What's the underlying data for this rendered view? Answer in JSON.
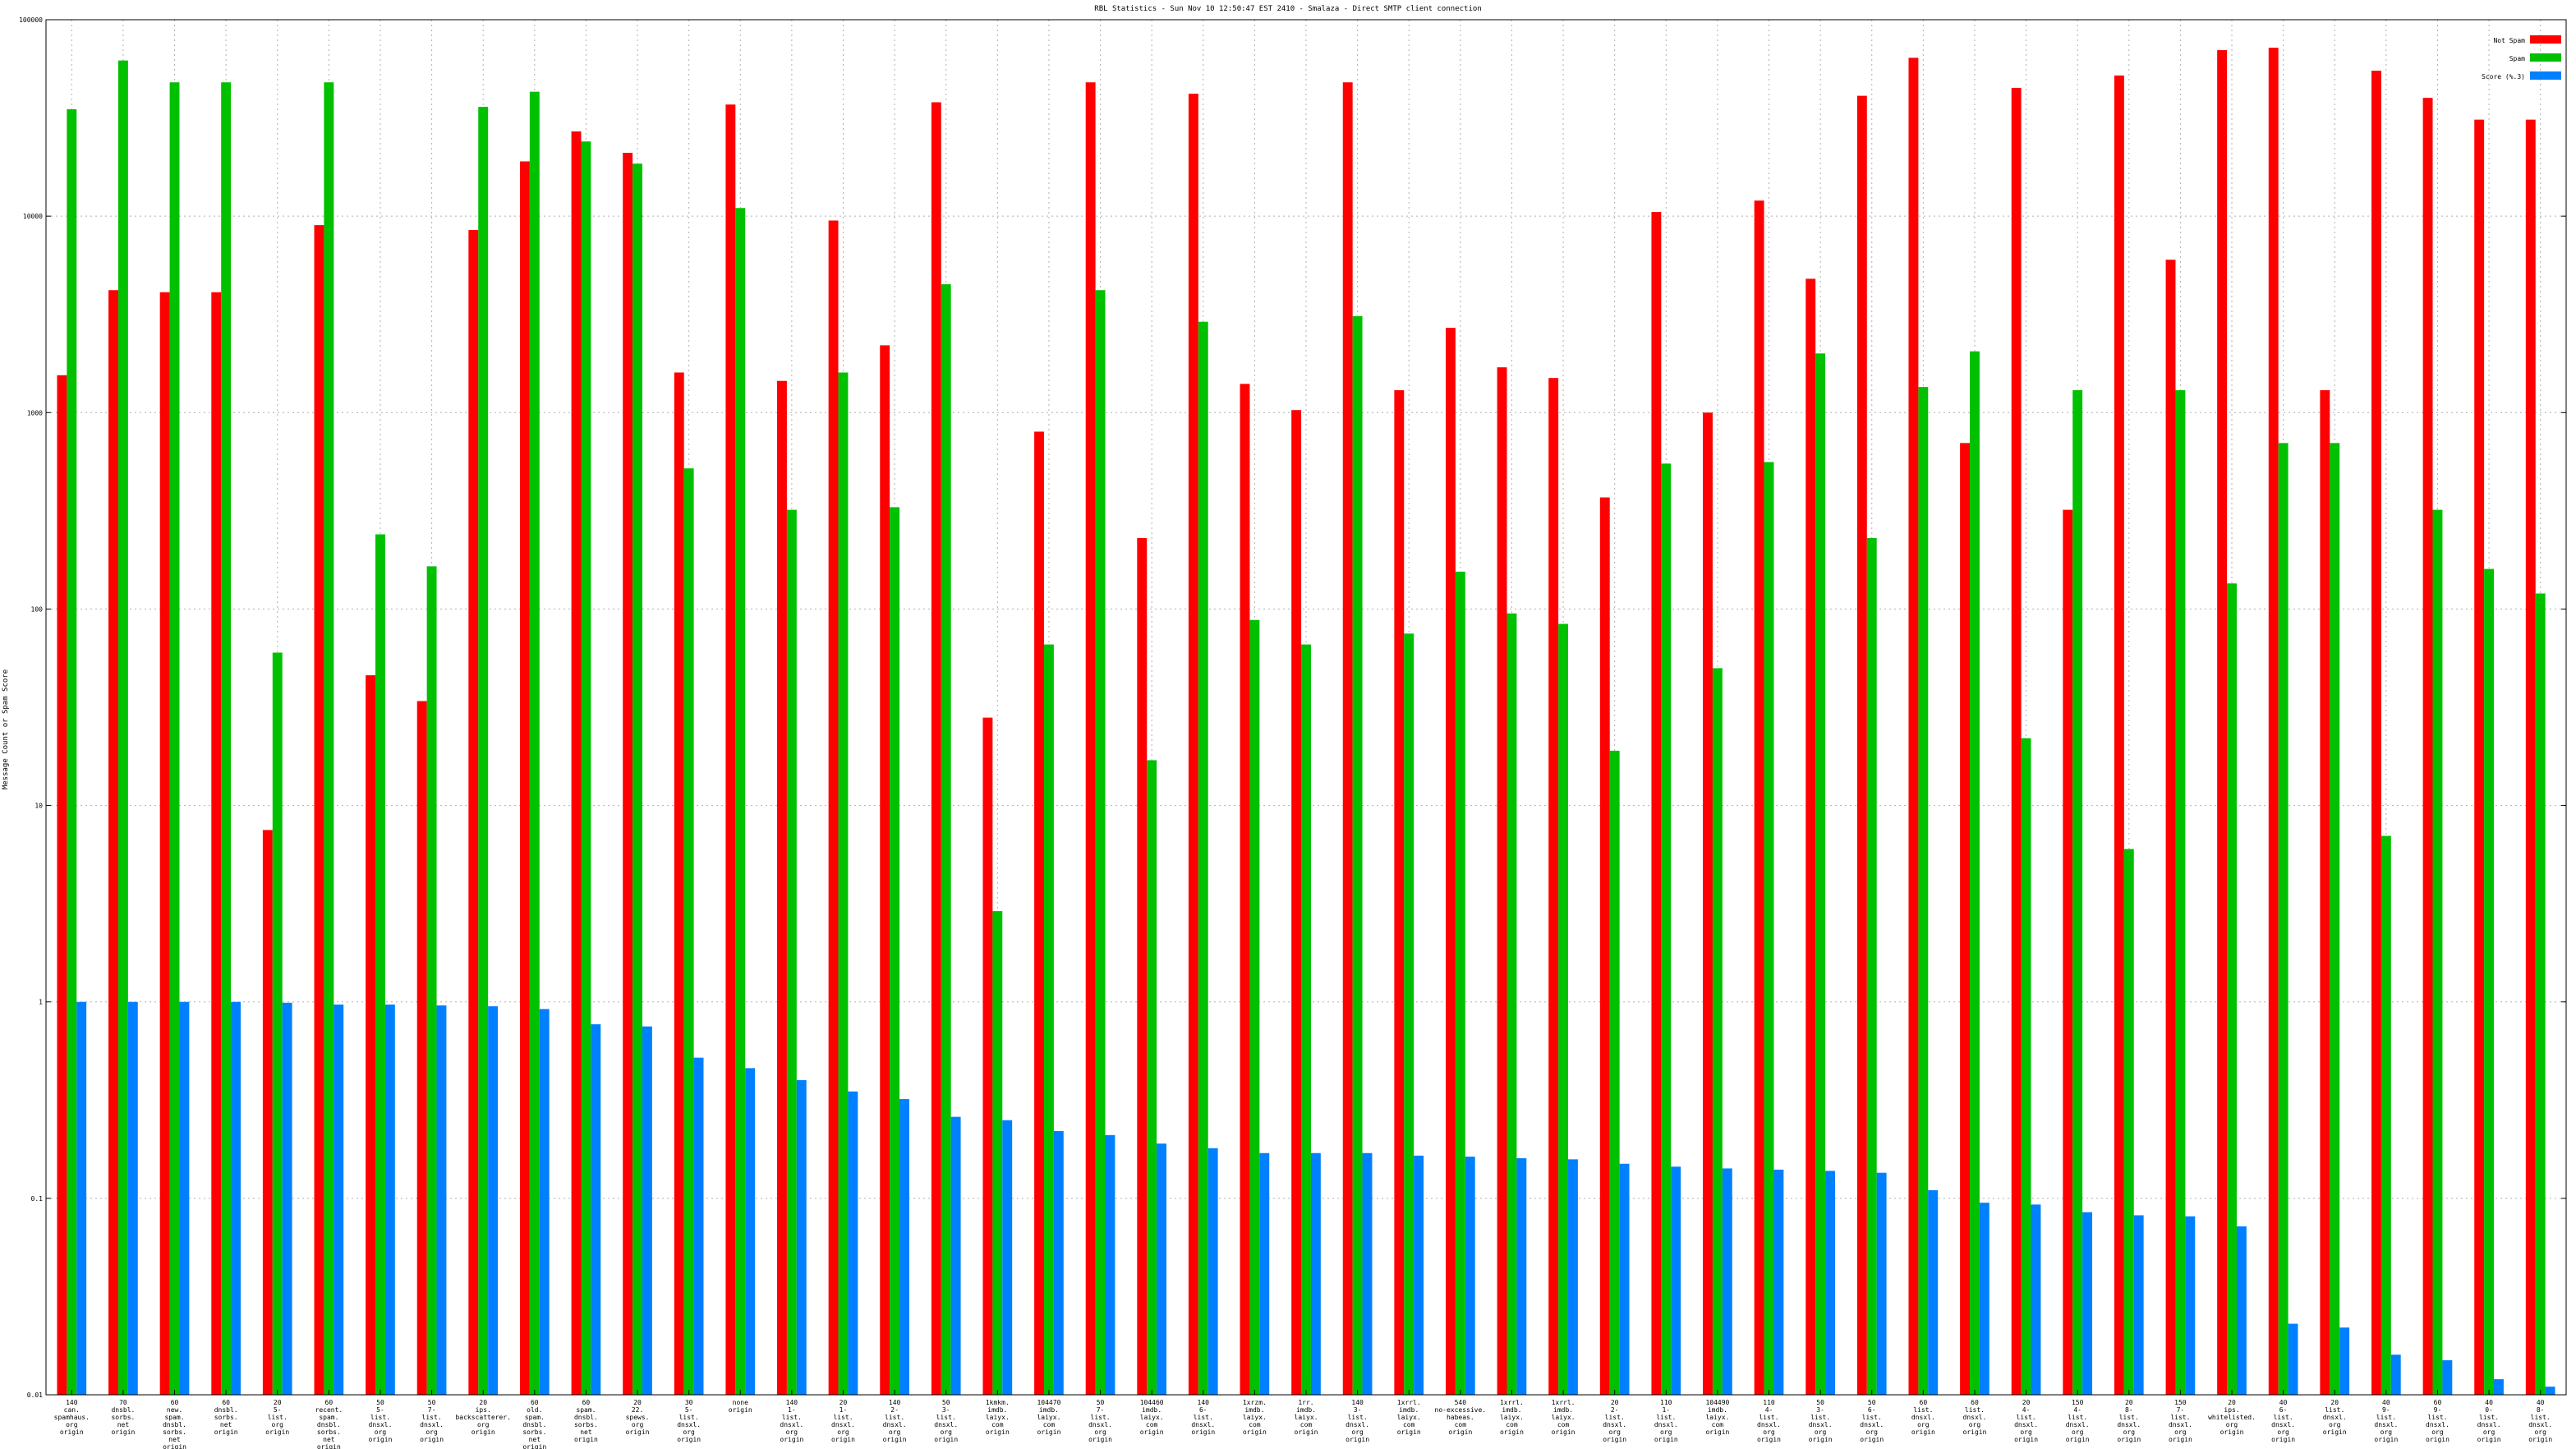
{
  "chart_data": {
    "type": "bar",
    "title": "RBL Statistics - Sun Nov 10 12:50:47 EST 2410 - Smalaza - Direct SMTP client connection",
    "xlabel": "",
    "ylabel": "Message Count or Spam Score",
    "yscale": "log",
    "ylim": [
      0.01,
      100000
    ],
    "yticks": [
      "0.01",
      "0.1",
      "1",
      "10",
      "100",
      "1000",
      "10000",
      "100000"
    ],
    "grid": true,
    "legend_position": "top-right",
    "categories": [
      "140\ncan.\nspamhaus.\norg\norigin",
      "70\ndnsbl.\nsorbs.\nnet\norigin",
      "60\nnew.\nspam.\ndnsbl.\nsorbs.\nnet\norigin",
      "60\ndnsbl.\nsorbs.\nnet\norigin",
      "20\n5-\nlist.\norg\norigin",
      "60\nrecent.\nspam.\ndnsbl.\nsorbs.\nnet\norigin",
      "50\n5-\nlist.\ndnsxl.\norg\norigin",
      "50\n7-\nlist.\ndnsxl.\norg\norigin",
      "20\nips.\nbackscatterer.\norg\norigin",
      "60\nold.\nspam.\ndnsbl.\nsorbs.\nnet\norigin",
      "60\nspam.\ndnsbl.\nsorbs.\nnet\norigin",
      "20\n22.\nspews.\norg\norigin",
      "30\n5-\nlist.\ndnsxl.\norg\norigin",
      "none\norigin",
      "140\n1-\nlist.\ndnsxl.\norg\norigin",
      "20\n1-\nlist.\ndnsxl.\norg\norigin",
      "140\n2-\nlist.\ndnsxl.\norg\norigin",
      "50\n3-\nlist.\ndnsxl.\norg\norigin",
      "1kmkm.\nimdb.\nlaiyx.\ncom\norigin",
      "104470\nimdb.\nlaiyx.\ncom\norigin",
      "50\n7-\nlist.\ndnsxl.\norg\norigin",
      "104460\nimdb.\nlaiyx.\ncom\norigin",
      "140\n6-\nlist.\ndnsxl.\norigin",
      "1xrzm.\nimdb.\nlaiyx.\ncom\norigin",
      "1rr.\nimdb.\nlaiyx.\ncom\norigin",
      "140\n3-\nlist.\ndnsxl.\norg\norigin",
      "1xrrl.\nimdb.\nlaiyx.\ncom\norigin",
      "540\nno-excessive.\nhabeas.\ncom\norigin",
      "1xrrl.\nimdb.\nlaiyx.\ncom\norigin",
      "1xrrl.\nimdb.\nlaiyx.\ncom\norigin",
      "20\n2-\nlist.\ndnsxl.\norg\norigin",
      "110\n1-\nlist.\ndnsxl.\norg\norigin",
      "104490\nimdb.\nlaiyx.\ncom\norigin",
      "110\n4-\nlist.\ndnsxl.\norg\norigin",
      "50\n3-\nlist.\ndnsxl.\norg\norigin",
      "50\n6-\nlist.\ndnsxl.\norg\norigin",
      "60\nlist.\ndnsxl.\norg\norigin",
      "60\nlist.\ndnsxl.\norg\norigin",
      "20\n4-\nlist.\ndnsxl.\norg\norigin",
      "150\n4-\nlist.\ndnsxl.\norg\norigin",
      "20\n8-\nlist.\ndnsxl.\norg\norigin",
      "150\n7-\nlist.\ndnsxl.\norg\norigin",
      "20\nips.\nwhitelisted.\norg\norigin",
      "40\n6-\nlist.\ndnsxl.\norg\norigin",
      "20\nlist.\ndnsxl.\norg\norigin",
      "40\n9-\nlist.\ndnsxl.\norg\norigin",
      "60\n9-\nlist.\ndnsxl.\norg\norigin",
      "40\n0-\nlist.\ndnsxl.\norg\norigin",
      "40\n8-\nlist.\ndnsxl.\norg\norigin"
    ],
    "series": [
      {
        "name": "Not Spam",
        "color": "#ff0000",
        "values": [
          1550,
          4200,
          4100,
          4100,
          7.5,
          9000,
          46,
          34,
          8500,
          19000,
          27000,
          21000,
          1600,
          37000,
          1450,
          9500,
          2200,
          38000,
          28,
          800,
          48000,
          230,
          42000,
          1400,
          1030,
          48000,
          1300,
          2700,
          1700,
          1500,
          370,
          10500,
          1000,
          12000,
          4800,
          41000,
          64000,
          700,
          45000,
          320,
          52000,
          6000,
          70000,
          72000,
          1300,
          55000,
          40000,
          31000,
          31000
        ]
      },
      {
        "name": "Spam",
        "color": "#00c000",
        "values": [
          35000,
          62000,
          48000,
          48000,
          60,
          48000,
          240,
          165,
          36000,
          43000,
          24000,
          18500,
          520,
          11000,
          320,
          1600,
          330,
          4500,
          2.9,
          66,
          4200,
          17,
          2900,
          88,
          66,
          3100,
          75,
          155,
          95,
          84,
          19,
          550,
          50,
          560,
          2000,
          230,
          1350,
          2050,
          22,
          1300,
          6,
          1300,
          135,
          700,
          700,
          7,
          320,
          160,
          120
        ]
      },
      {
        "name": "Score (%.3)",
        "color": "#0080ff",
        "values": [
          1.0,
          1.0,
          1.0,
          1.0,
          0.99,
          0.97,
          0.97,
          0.96,
          0.95,
          0.92,
          0.77,
          0.75,
          0.52,
          0.46,
          0.4,
          0.35,
          0.32,
          0.26,
          0.25,
          0.22,
          0.21,
          0.19,
          0.18,
          0.17,
          0.17,
          0.17,
          0.165,
          0.163,
          0.16,
          0.158,
          0.15,
          0.145,
          0.142,
          0.14,
          0.138,
          0.135,
          0.11,
          0.095,
          0.093,
          0.085,
          0.082,
          0.081,
          0.072,
          0.023,
          0.022,
          0.016,
          0.015,
          0.012,
          0.011
        ]
      }
    ]
  }
}
